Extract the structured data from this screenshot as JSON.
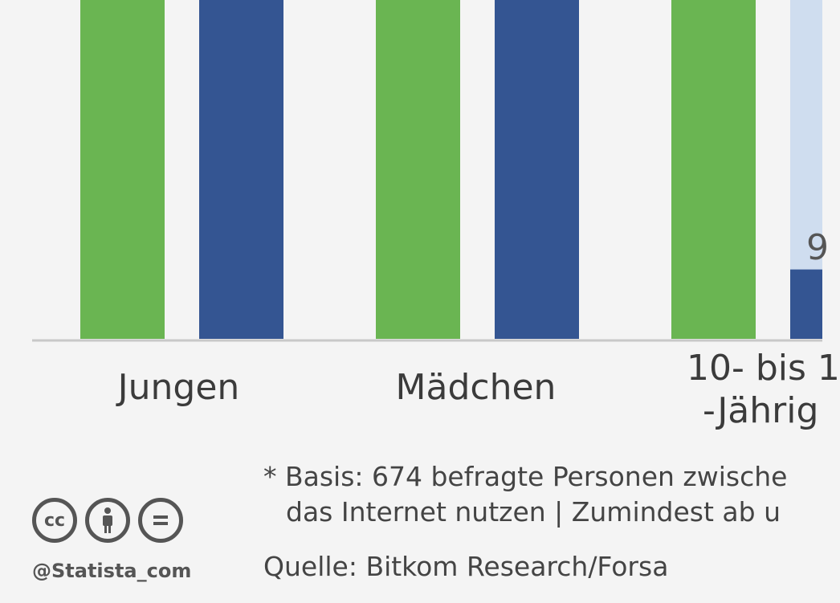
{
  "chart_data": {
    "type": "bar",
    "categories": [
      "Jungen",
      "Mädchen",
      "10- bis 1"
    ],
    "category_label_lines": [
      [
        "Jungen"
      ],
      [
        "Mädchen"
      ],
      [
        "10- bis 1",
        "-Jährig"
      ]
    ],
    "series": [
      {
        "values": [
          null,
          null,
          null
        ]
      },
      {
        "values": [
          null,
          null,
          9
        ]
      }
    ],
    "visible_data_labels": [
      "9"
    ],
    "colors": {
      "series1": "#6ab552",
      "series2": "#345592",
      "highlight_bg": "#cfddef"
    },
    "legend": "none",
    "grid": false
  },
  "footnote": {
    "line1": "* Basis: 674 befragte Personen zwische",
    "line2": "das Internet nutzen | Zumindest ab u"
  },
  "source": "Quelle: Bitkom Research/Forsa",
  "license_icons": [
    "cc-icon",
    "attribution-icon",
    "no-derivatives-icon"
  ],
  "brand": "@Statista_com"
}
